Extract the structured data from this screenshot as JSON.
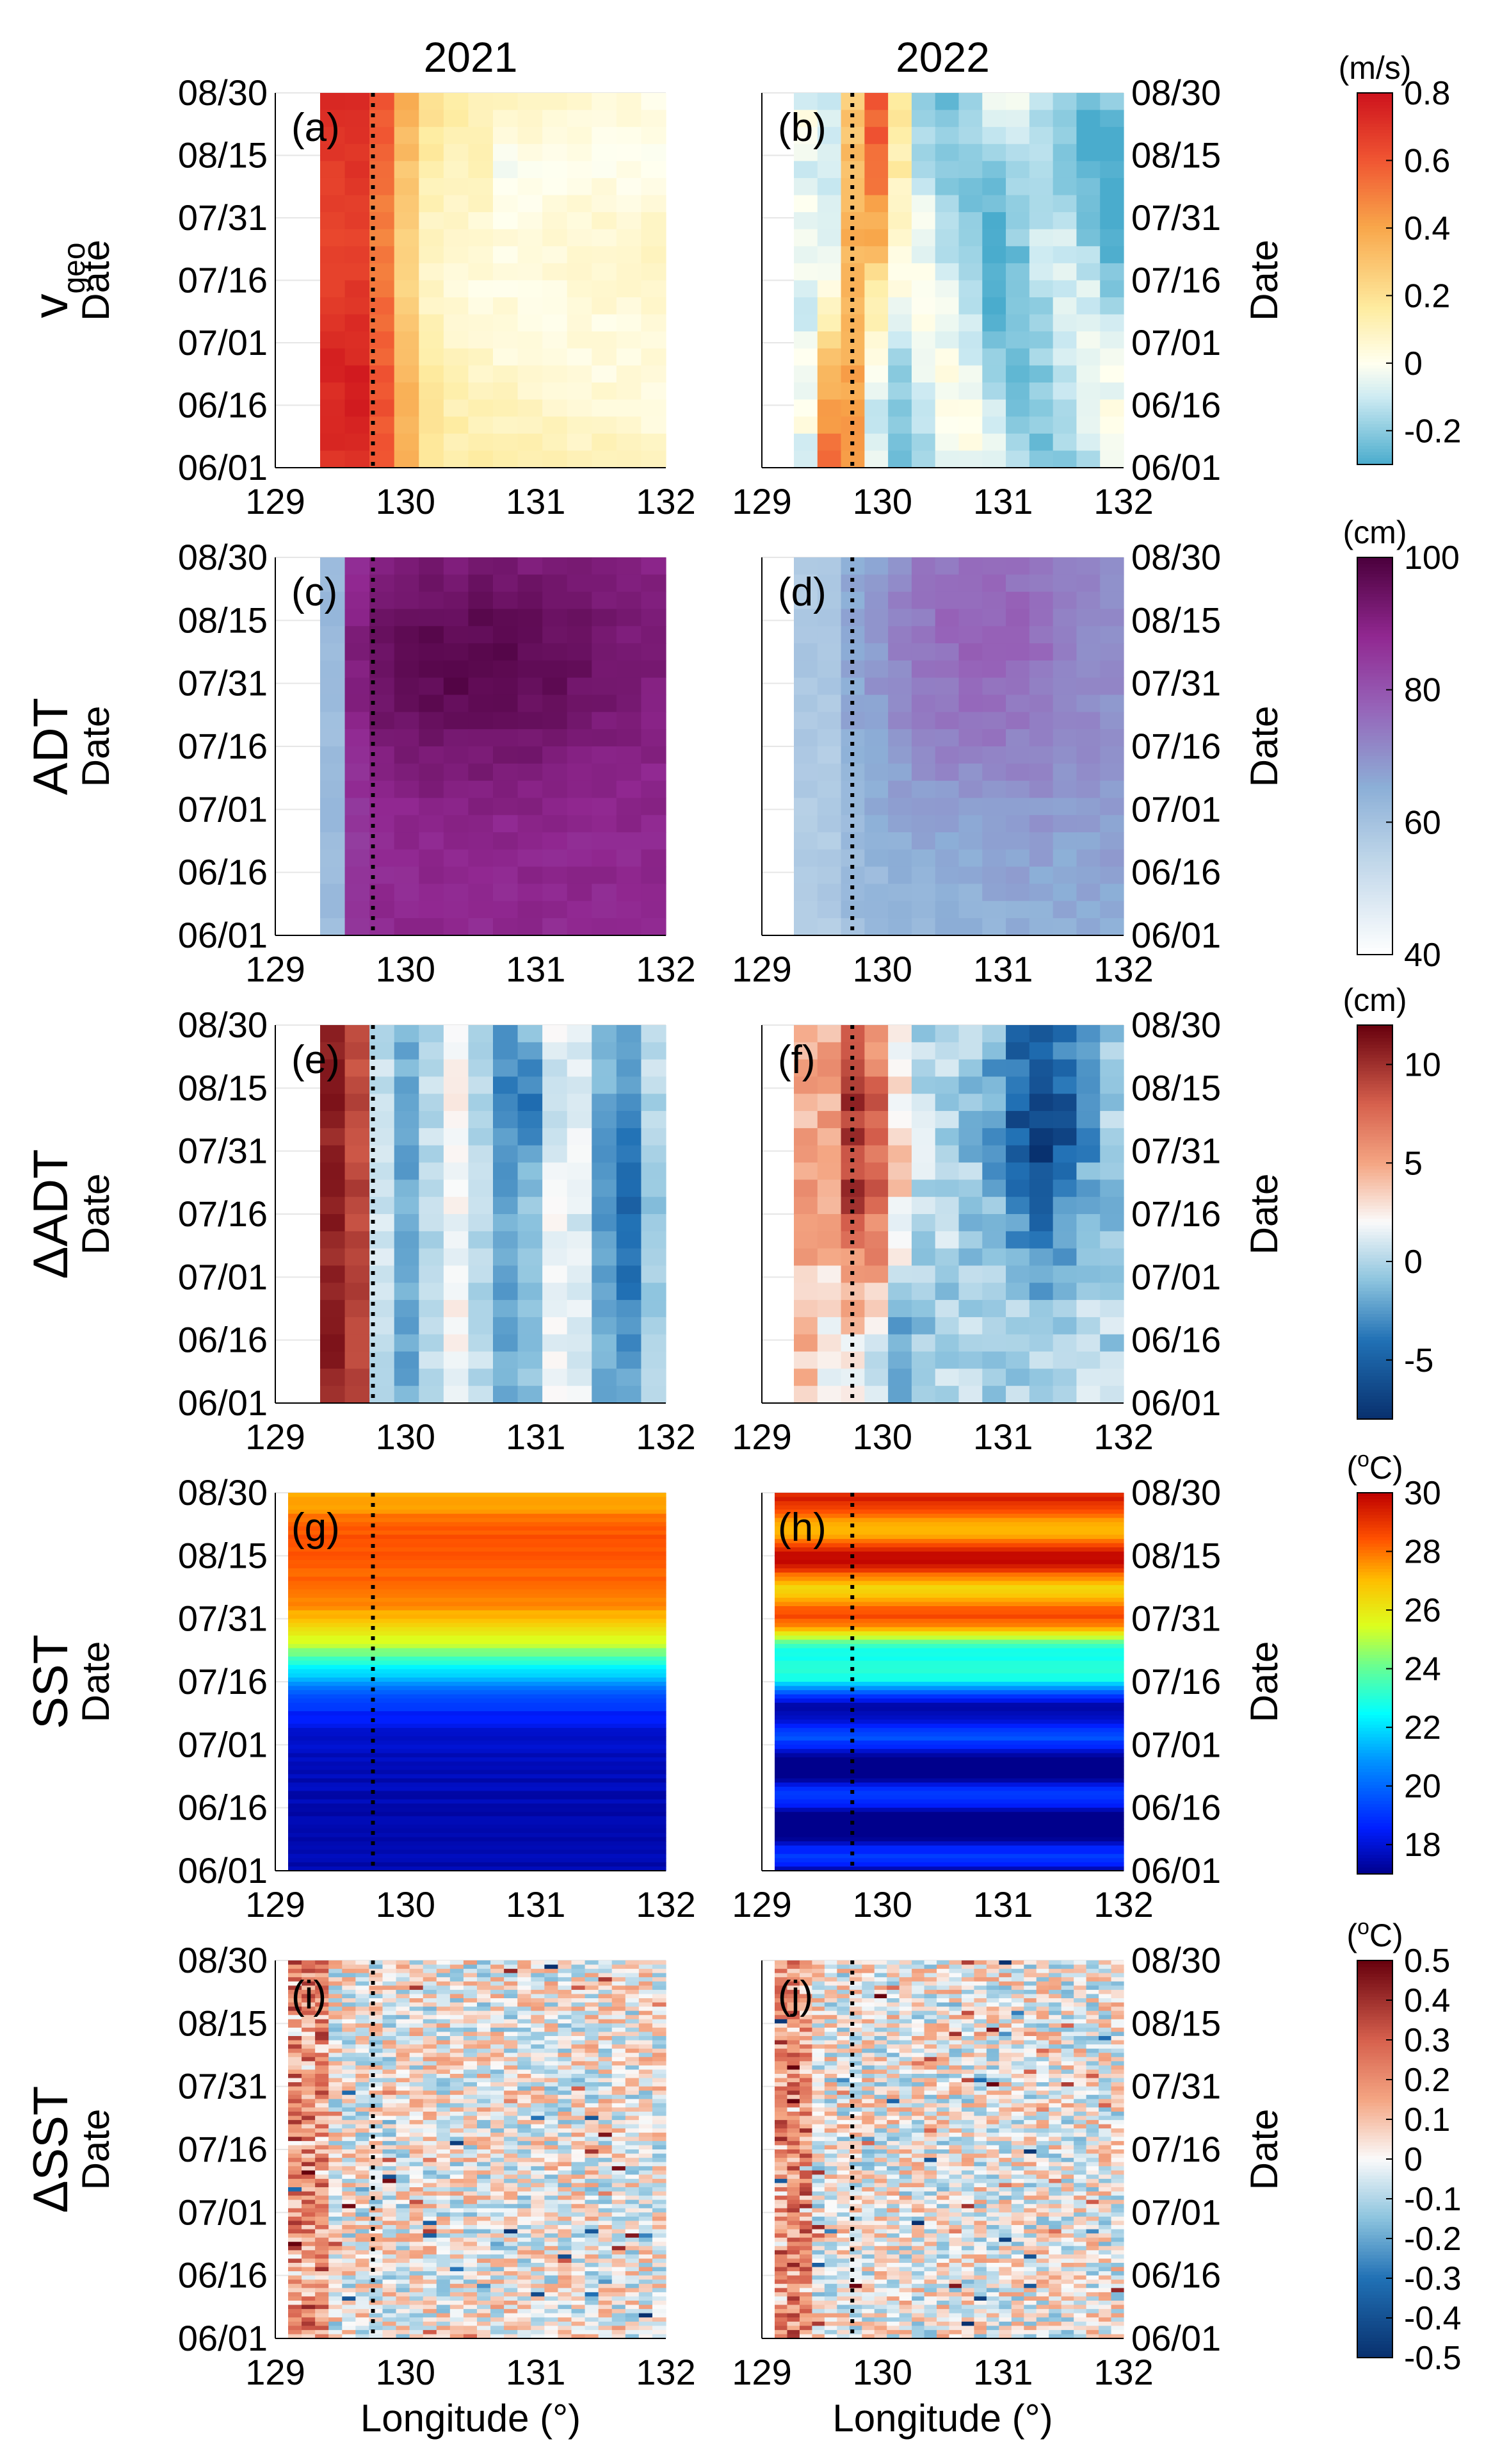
{
  "figure": {
    "column_titles": [
      "2021",
      "2022"
    ],
    "y_axis_label": "Date",
    "x_axis_label": "Longitude (°)"
  },
  "chart_data": {
    "type": "heatmap",
    "x": {
      "label": "Longitude (°)",
      "range": [
        129,
        132
      ],
      "ticks": [
        "129",
        "130",
        "131",
        "132"
      ]
    },
    "y": {
      "label": "Date",
      "ticks": [
        "06/01",
        "06/16",
        "07/01",
        "07/16",
        "07/31",
        "08/15",
        "08/30"
      ]
    },
    "reference_longitude": 129.75,
    "rows": [
      {
        "label": "v",
        "label_sub": "geo",
        "colorbar": {
          "unit": "(m/s)",
          "min": -0.3,
          "max": 0.8,
          "ticks": [
            "0.8",
            "0.6",
            "0.4",
            "0.2",
            "0",
            "-0.2"
          ],
          "tick_values": [
            0.8,
            0.6,
            0.4,
            0.2,
            0,
            -0.2
          ]
        },
        "panels": [
          {
            "tag": "(a)",
            "year": "2021"
          },
          {
            "tag": "(b)",
            "year": "2022"
          }
        ]
      },
      {
        "label": "ADT",
        "label_sub": "",
        "colorbar": {
          "unit": "(cm)",
          "min": 40,
          "max": 100,
          "ticks": [
            "100",
            "80",
            "60",
            "40"
          ],
          "tick_values": [
            100,
            80,
            60,
            40
          ]
        },
        "panels": [
          {
            "tag": "(c)",
            "year": "2021"
          },
          {
            "tag": "(d)",
            "year": "2022"
          }
        ]
      },
      {
        "label": "ΔADT",
        "label_sub": "",
        "colorbar": {
          "unit": "(cm)",
          "min": -8,
          "max": 12,
          "ticks": [
            "10",
            "5",
            "0",
            "-5"
          ],
          "tick_values": [
            10,
            5,
            0,
            -5
          ]
        },
        "panels": [
          {
            "tag": "(e)",
            "year": "2021"
          },
          {
            "tag": "(f)",
            "year": "2022"
          }
        ]
      },
      {
        "label": "SST",
        "label_sub": "",
        "colorbar": {
          "unit": "(°C)",
          "min": 17,
          "max": 30,
          "ticks": [
            "30",
            "28",
            "26",
            "24",
            "22",
            "20",
            "18"
          ],
          "tick_values": [
            30,
            28,
            26,
            24,
            22,
            20,
            18
          ]
        },
        "panels": [
          {
            "tag": "(g)",
            "year": "2021"
          },
          {
            "tag": "(h)",
            "year": "2022"
          }
        ]
      },
      {
        "label": "ΔSST",
        "label_sub": "",
        "colorbar": {
          "unit": "(°C)",
          "min": -0.5,
          "max": 0.5,
          "ticks": [
            "0.5",
            "0.4",
            "0.3",
            "0.2",
            "0.1",
            "0",
            "-0.1",
            "-0.2",
            "-0.3",
            "-0.4",
            "-0.5"
          ],
          "tick_values": [
            0.5,
            0.4,
            0.3,
            0.2,
            0.1,
            0,
            -0.1,
            -0.2,
            -0.3,
            -0.4,
            -0.5
          ]
        },
        "panels": [
          {
            "tag": "(i)",
            "year": "2021"
          },
          {
            "tag": "(j)",
            "year": "2022"
          }
        ]
      }
    ]
  }
}
